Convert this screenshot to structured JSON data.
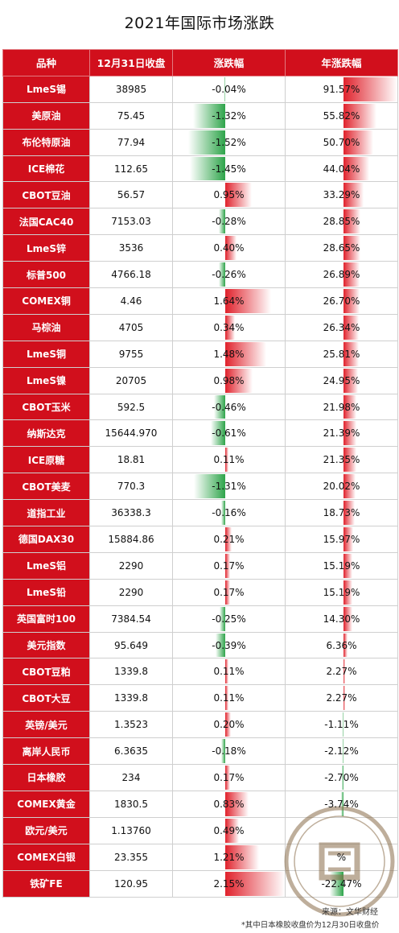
{
  "title": "2021年国际市场涨跌",
  "headers": {
    "name": "品种",
    "close": "12月31日收盘",
    "change": "涨跌幅",
    "year_change": "年涨跌幅"
  },
  "colors": {
    "header_bg": "#d10f1c",
    "positive": "#e0222c",
    "negative": "#2ea44a"
  },
  "chart_data": {
    "type": "table",
    "columns": [
      "品种",
      "12月31日收盘",
      "涨跌幅",
      "年涨跌幅"
    ],
    "rows": [
      {
        "name": "LmeS锡",
        "close": "38985",
        "change": -0.04,
        "year": 91.57,
        "change_label": "-0.04%",
        "year_label": "91.57%"
      },
      {
        "name": "美原油",
        "close": "75.45",
        "change": -1.32,
        "year": 55.82,
        "change_label": "-1.32%",
        "year_label": "55.82%"
      },
      {
        "name": "布伦特原油",
        "close": "77.94",
        "change": -1.52,
        "year": 50.7,
        "change_label": "-1.52%",
        "year_label": "50.70%"
      },
      {
        "name": "ICE棉花",
        "close": "112.65",
        "change": -1.45,
        "year": 44.04,
        "change_label": "-1.45%",
        "year_label": "44.04%"
      },
      {
        "name": "CBOT豆油",
        "close": "56.57",
        "change": 0.95,
        "year": 33.29,
        "change_label": "0.95%",
        "year_label": "33.29%"
      },
      {
        "name": "法国CAC40",
        "close": "7153.03",
        "change": -0.28,
        "year": 28.85,
        "change_label": "-0.28%",
        "year_label": "28.85%"
      },
      {
        "name": "LmeS锌",
        "close": "3536",
        "change": 0.4,
        "year": 28.65,
        "change_label": "0.40%",
        "year_label": "28.65%"
      },
      {
        "name": "标普500",
        "close": "4766.18",
        "change": -0.26,
        "year": 26.89,
        "change_label": "-0.26%",
        "year_label": "26.89%"
      },
      {
        "name": "COMEX铜",
        "close": "4.46",
        "change": 1.64,
        "year": 26.7,
        "change_label": "1.64%",
        "year_label": "26.70%"
      },
      {
        "name": "马棕油",
        "close": "4705",
        "change": 0.34,
        "year": 26.34,
        "change_label": "0.34%",
        "year_label": "26.34%"
      },
      {
        "name": "LmeS铜",
        "close": "9755",
        "change": 1.48,
        "year": 25.81,
        "change_label": "1.48%",
        "year_label": "25.81%"
      },
      {
        "name": "LmeS镍",
        "close": "20705",
        "change": 0.98,
        "year": 24.95,
        "change_label": "0.98%",
        "year_label": "24.95%"
      },
      {
        "name": "CBOT玉米",
        "close": "592.5",
        "change": -0.46,
        "year": 21.98,
        "change_label": "-0.46%",
        "year_label": "21.98%"
      },
      {
        "name": "纳斯达克",
        "close": "15644.970",
        "change": -0.61,
        "year": 21.39,
        "change_label": "-0.61%",
        "year_label": "21.39%"
      },
      {
        "name": "ICE原糖",
        "close": "18.81",
        "change": 0.11,
        "year": 21.35,
        "change_label": "0.11%",
        "year_label": "21.35%"
      },
      {
        "name": "CBOT美麦",
        "close": "770.3",
        "change": -1.31,
        "year": 20.02,
        "change_label": "-1.31%",
        "year_label": "20.02%"
      },
      {
        "name": "道指工业",
        "close": "36338.3",
        "change": -0.16,
        "year": 18.73,
        "change_label": "-0.16%",
        "year_label": "18.73%"
      },
      {
        "name": "德国DAX30",
        "close": "15884.86",
        "change": 0.21,
        "year": 15.97,
        "change_label": "0.21%",
        "year_label": "15.97%"
      },
      {
        "name": "LmeS铝",
        "close": "2290",
        "change": 0.17,
        "year": 15.19,
        "change_label": "0.17%",
        "year_label": "15.19%"
      },
      {
        "name": "LmeS铅",
        "close": "2290",
        "change": 0.17,
        "year": 15.19,
        "change_label": "0.17%",
        "year_label": "15.19%"
      },
      {
        "name": "英国富时100",
        "close": "7384.54",
        "change": -0.25,
        "year": 14.3,
        "change_label": "-0.25%",
        "year_label": "14.30%"
      },
      {
        "name": "美元指数",
        "close": "95.649",
        "change": -0.39,
        "year": 6.36,
        "change_label": "-0.39%",
        "year_label": "6.36%"
      },
      {
        "name": "CBOT豆粕",
        "close": "1339.8",
        "change": 0.11,
        "year": 2.27,
        "change_label": "0.11%",
        "year_label": "2.27%"
      },
      {
        "name": "CBOT大豆",
        "close": "1339.8",
        "change": 0.11,
        "year": 2.27,
        "change_label": "0.11%",
        "year_label": "2.27%"
      },
      {
        "name": "英镑/美元",
        "close": "1.3523",
        "change": 0.2,
        "year": -1.11,
        "change_label": "0.20%",
        "year_label": "-1.11%"
      },
      {
        "name": "离岸人民币",
        "close": "6.3635",
        "change": -0.18,
        "year": -2.12,
        "change_label": "-0.18%",
        "year_label": "-2.12%"
      },
      {
        "name": "日本橡胶",
        "close": "234",
        "change": 0.17,
        "year": -2.7,
        "change_label": "0.17%",
        "year_label": "-2.70%"
      },
      {
        "name": "COMEX黄金",
        "close": "1830.5",
        "change": 0.83,
        "year": -3.74,
        "change_label": "0.83%",
        "year_label": "-3.74%"
      },
      {
        "name": "欧元/美元",
        "close": "1.13760",
        "change": 0.49,
        "year": null,
        "change_label": "0.49%",
        "year_label": ""
      },
      {
        "name": "COMEX白银",
        "close": "23.355",
        "change": 1.21,
        "year": null,
        "change_label": "1.21%",
        "year_label": "%"
      },
      {
        "name": "铁矿FE",
        "close": "120.95",
        "change": 2.15,
        "year": -22.47,
        "change_label": "2.15%",
        "year_label": "-22.47%"
      }
    ]
  },
  "watermark": {
    "line1": "来源：文华财经",
    "line2": "*其中日本橡胶收盘价为12月30日收盘价"
  }
}
